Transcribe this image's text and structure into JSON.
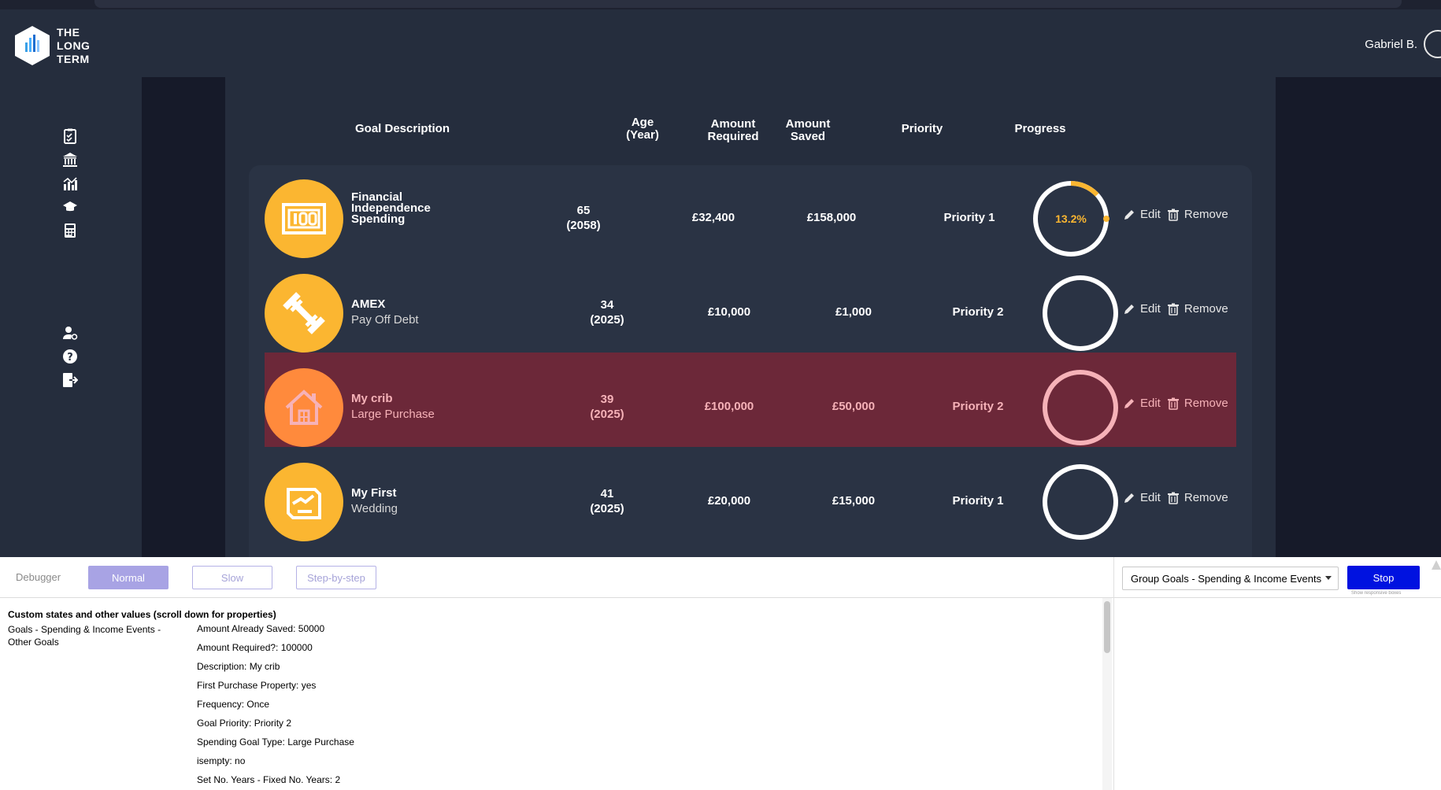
{
  "header": {
    "logo_lines": [
      "THE",
      "LONG",
      "TERM"
    ],
    "user_name": "Gabriel B."
  },
  "sidebar": {
    "top_icons": [
      "checklist-icon",
      "bank-icon",
      "chart-icon",
      "graduation-cap-icon",
      "calculator-icon"
    ],
    "bottom_icons": [
      "user-settings-icon",
      "help-icon",
      "logout-icon"
    ]
  },
  "table": {
    "headers": {
      "goal_description": "Goal Description",
      "age_line1": "Age",
      "age_line2": "(Year)",
      "amount_required_line1": "Amount",
      "amount_required_line2": "Required",
      "amount_saved_line1": "Amount",
      "amount_saved_line2": "Saved",
      "priority": "Priority",
      "progress": "Progress"
    },
    "rows": [
      {
        "title": "Financial Independence Spending",
        "title_lines": [
          "Financial",
          "Independence",
          "Spending"
        ],
        "subtitle": "",
        "icon": "money-icon",
        "age": "65",
        "year": "(2058)",
        "amount_required": "£32,400",
        "amount_saved": "£158,000",
        "priority": "Priority 1",
        "progress_label": "13.2%",
        "progress_value": 13.2,
        "highlighted": false
      },
      {
        "title": "AMEX",
        "title_lines": [
          "AMEX"
        ],
        "subtitle": "Pay Off Debt",
        "icon": "dumbbell-icon",
        "age": "34",
        "year": "(2025)",
        "amount_required": "£10,000",
        "amount_saved": "£1,000",
        "priority": "Priority 2",
        "progress_label": "",
        "progress_value": 0,
        "highlighted": false
      },
      {
        "title": "My crib",
        "title_lines": [
          "My crib"
        ],
        "subtitle": "Large Purchase",
        "icon": "house-icon",
        "age": "39",
        "year": "(2025)",
        "amount_required": "£100,000",
        "amount_saved": "£50,000",
        "priority": "Priority 2",
        "progress_label": "",
        "progress_value": 0,
        "highlighted": true
      },
      {
        "title": "My First",
        "title_lines": [
          "My First"
        ],
        "subtitle": "Wedding",
        "icon": "wedding-icon",
        "age": "41",
        "year": "(2025)",
        "amount_required": "£20,000",
        "amount_saved": "£15,000",
        "priority": "Priority 1",
        "progress_label": "",
        "progress_value": 0,
        "highlighted": false
      }
    ],
    "edit_label": "Edit",
    "remove_label": "Remove"
  },
  "debugger": {
    "label": "Debugger",
    "modes": [
      "Normal",
      "Slow",
      "Step-by-step"
    ],
    "active_mode": "Normal",
    "selected_element": "Group Goals -  Spending & Income Events",
    "stop_label": "Stop",
    "hint": "Show responsive boxes",
    "states_heading": "Custom states and other values (scroll down for properties)",
    "group_name": "Goals - Spending & Income Events - Other Goals",
    "properties": [
      {
        "key": "Amount Already Saved:",
        "value": "50000"
      },
      {
        "key": "Amount Required?:",
        "value": "100000"
      },
      {
        "key": "Description:",
        "value": "My crib"
      },
      {
        "key": "First Purchase Property:",
        "value": "yes"
      },
      {
        "key": "Frequency:",
        "value": "Once"
      },
      {
        "key": "Goal Priority:",
        "value": "Priority 2"
      },
      {
        "key": "Spending Goal Type:",
        "value": "Large Purchase"
      },
      {
        "key": "isempty:",
        "value": "no"
      },
      {
        "key": "Set No. Years - Fixed No. Years:",
        "value": "2"
      }
    ]
  },
  "colors": {
    "background": "#252d3d",
    "panel": "#2a3344",
    "frame": "#161a29",
    "goal_icon": "#fbb631",
    "goal_icon_highlight": "#ff8a3c",
    "highlight_row": "#6c2839",
    "progress_accent": "#fbb631",
    "stop_button": "#0012e0"
  }
}
